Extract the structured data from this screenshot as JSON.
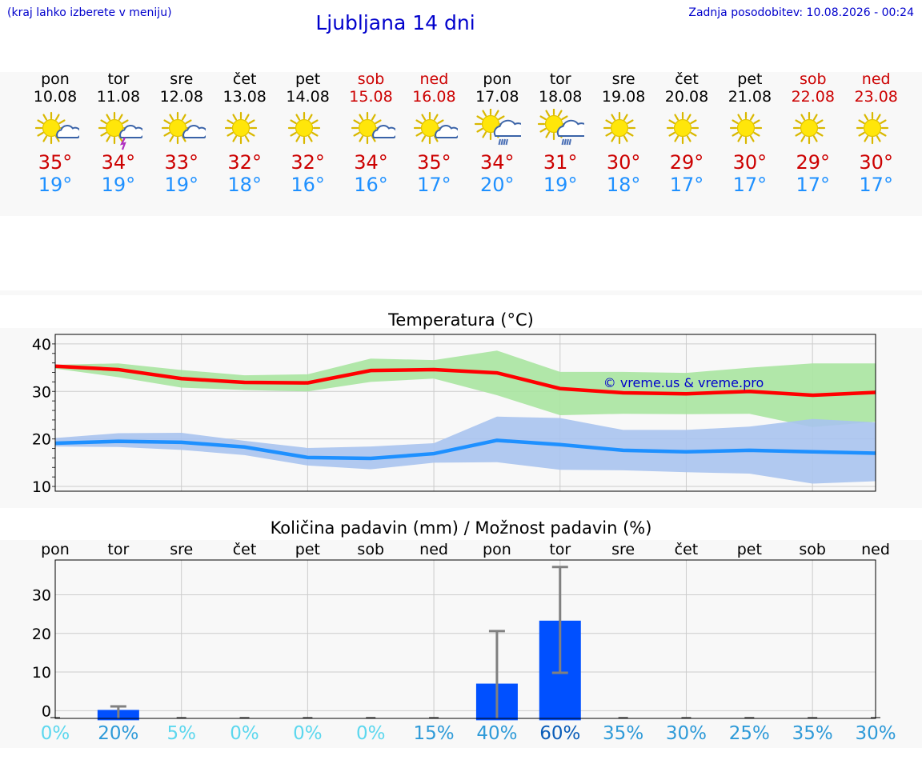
{
  "header": {
    "left_note": "(kraj lahko izberete v meniju)",
    "title": "Ljubljana 14 dni",
    "last_update": "Zadnja posodobitev: 10.08.2026 - 00:24"
  },
  "days": [
    {
      "name": "pon",
      "date": "10.08",
      "weekend": false,
      "icon": "sun-cloud-icon",
      "tmax": "35°",
      "tmin": "19°"
    },
    {
      "name": "tor",
      "date": "11.08",
      "weekend": false,
      "icon": "sun-thunderstorm-icon",
      "tmax": "34°",
      "tmin": "19°"
    },
    {
      "name": "sre",
      "date": "12.08",
      "weekend": false,
      "icon": "sun-cloud-icon",
      "tmax": "33°",
      "tmin": "19°"
    },
    {
      "name": "čet",
      "date": "13.08",
      "weekend": false,
      "icon": "sun-icon",
      "tmax": "32°",
      "tmin": "18°"
    },
    {
      "name": "pet",
      "date": "14.08",
      "weekend": false,
      "icon": "sun-icon",
      "tmax": "32°",
      "tmin": "16°"
    },
    {
      "name": "sob",
      "date": "15.08",
      "weekend": true,
      "icon": "sun-cloud-icon",
      "tmax": "34°",
      "tmin": "16°"
    },
    {
      "name": "ned",
      "date": "16.08",
      "weekend": true,
      "icon": "sun-cloud-icon",
      "tmax": "35°",
      "tmin": "17°"
    },
    {
      "name": "pon",
      "date": "17.08",
      "weekend": false,
      "icon": "sun-rain-icon",
      "tmax": "34°",
      "tmin": "20°"
    },
    {
      "name": "tor",
      "date": "18.08",
      "weekend": false,
      "icon": "sun-rain-icon",
      "tmax": "31°",
      "tmin": "19°"
    },
    {
      "name": "sre",
      "date": "19.08",
      "weekend": false,
      "icon": "sun-icon",
      "tmax": "30°",
      "tmin": "18°"
    },
    {
      "name": "čet",
      "date": "20.08",
      "weekend": false,
      "icon": "sun-icon",
      "tmax": "29°",
      "tmin": "17°"
    },
    {
      "name": "pet",
      "date": "21.08",
      "weekend": false,
      "icon": "sun-icon",
      "tmax": "30°",
      "tmin": "17°"
    },
    {
      "name": "sob",
      "date": "22.08",
      "weekend": true,
      "icon": "sun-icon",
      "tmax": "29°",
      "tmin": "17°"
    },
    {
      "name": "ned",
      "date": "23.08",
      "weekend": true,
      "icon": "sun-icon",
      "tmax": "30°",
      "tmin": "17°"
    }
  ],
  "colors": {
    "weekend": "#cc0000",
    "tmax": "#cc0000",
    "tmin": "#1e90ff",
    "max_band": "#a8e4a0",
    "min_band": "#a9c3ee",
    "bar": "#0050ff",
    "error_bar": "#808080"
  },
  "chart_data": [
    {
      "type": "line",
      "title": "Temperatura (°C)",
      "watermark": "© vreme.us & vreme.pro",
      "ylim": [
        9,
        42
      ],
      "yticks": [
        10,
        20,
        30,
        40
      ],
      "grid": true,
      "series": [
        {
          "key": "max",
          "values": [
            35.3,
            34.6,
            32.7,
            31.9,
            31.8,
            34.4,
            34.6,
            33.9,
            30.6,
            29.7,
            29.5,
            30.0,
            29.2,
            29.8
          ],
          "band_high": [
            35.6,
            35.9,
            34.5,
            33.4,
            33.6,
            36.9,
            36.6,
            38.6,
            34.1,
            34.1,
            33.9,
            35.0,
            35.9,
            35.9
          ],
          "band_low": [
            34.8,
            33.0,
            30.8,
            30.3,
            30.0,
            32.0,
            32.7,
            29.2,
            25.0,
            25.3,
            25.2,
            25.3,
            22.5,
            23.6
          ]
        },
        {
          "key": "min",
          "values": [
            19.1,
            19.5,
            19.3,
            18.3,
            16.1,
            15.9,
            16.9,
            19.7,
            18.8,
            17.6,
            17.3,
            17.6,
            17.3,
            17.0
          ],
          "band_high": [
            20.2,
            21.2,
            21.3,
            19.6,
            18.1,
            18.4,
            19.1,
            24.7,
            24.4,
            21.9,
            21.9,
            22.6,
            24.2,
            23.5
          ],
          "band_low": [
            18.4,
            18.3,
            17.7,
            16.6,
            14.4,
            13.6,
            15.0,
            15.1,
            13.5,
            13.4,
            13.0,
            12.7,
            10.6,
            11.1
          ]
        }
      ]
    },
    {
      "type": "bar",
      "title": "Količina padavin (mm) / Možnost padavin (%)",
      "categories": [
        "pon",
        "tor",
        "sre",
        "čet",
        "pet",
        "sob",
        "ned",
        "pon",
        "tor",
        "sre",
        "čet",
        "pet",
        "sob",
        "ned"
      ],
      "ylim": [
        -2,
        39
      ],
      "yticks": [
        0,
        10,
        20,
        30
      ],
      "values": [
        0,
        0.2,
        0,
        0,
        0,
        0,
        0,
        7.0,
        23.3,
        0,
        0,
        0,
        0,
        0
      ],
      "error_high": [
        0,
        1.1,
        0,
        0,
        0,
        0,
        0,
        20.6,
        37.2,
        0,
        0,
        0,
        0,
        0
      ],
      "error_low": [
        0,
        0,
        0,
        0,
        0,
        0,
        0,
        0,
        9.8,
        0,
        0,
        0,
        0,
        0
      ],
      "probability": [
        "0%",
        "20%",
        "5%",
        "0%",
        "0%",
        "0%",
        "15%",
        "40%",
        "60%",
        "35%",
        "30%",
        "25%",
        "35%",
        "30%"
      ],
      "probability_colors": [
        "#5cd7ee",
        "#2e9ad8",
        "#5cd7ee",
        "#5cd7ee",
        "#5cd7ee",
        "#5cd7ee",
        "#2e9ad8",
        "#2e9ad8",
        "#0a5cb8",
        "#2e9ad8",
        "#2e9ad8",
        "#2e9ad8",
        "#2e9ad8",
        "#2e9ad8"
      ]
    }
  ]
}
